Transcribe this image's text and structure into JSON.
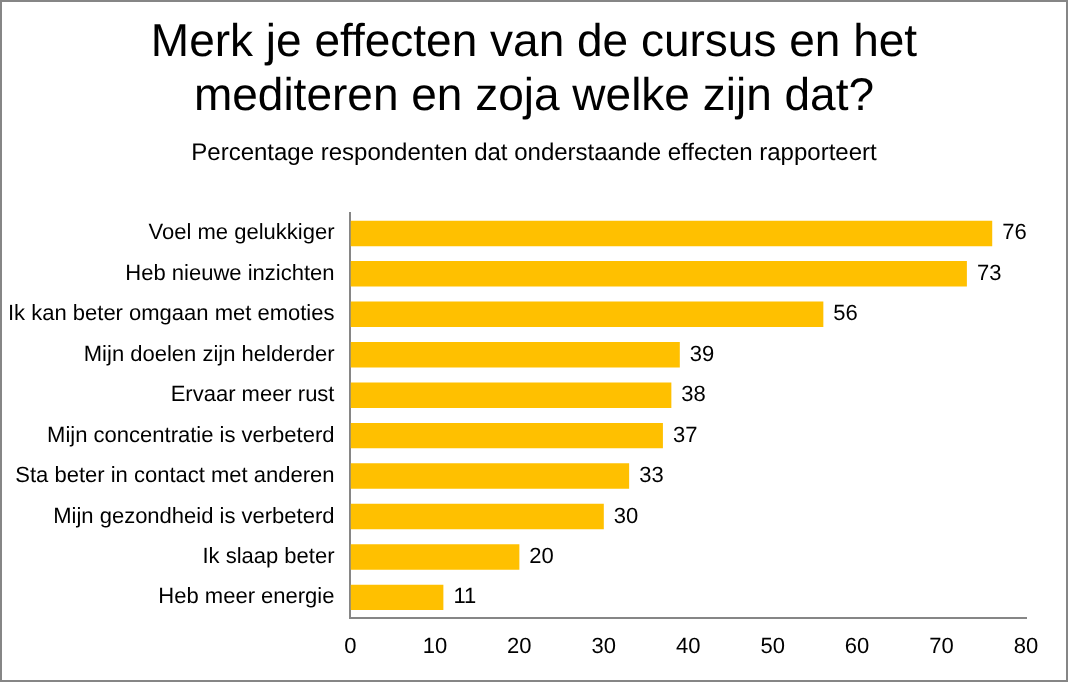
{
  "chart_data": {
    "type": "bar",
    "orientation": "horizontal",
    "title": "Merk je effecten van de cursus en het mediteren en zoja welke zijn dat?",
    "subtitle": "Percentage respondenten dat onderstaande  effecten rapporteert",
    "categories": [
      "Voel me gelukkiger",
      "Heb nieuwe inzichten",
      "Ik kan beter omgaan met emoties",
      "Mijn doelen zijn helderder",
      "Ervaar meer rust",
      "Mijn concentratie is verbeterd",
      "Sta beter in contact met anderen",
      "Mijn gezondheid is verbeterd",
      "Ik slaap beter",
      "Heb meer energie"
    ],
    "values": [
      76,
      73,
      56,
      39,
      38,
      37,
      33,
      30,
      20,
      11
    ],
    "color": "#ffc000",
    "xlim": [
      0,
      80
    ],
    "xticks": [
      0,
      10,
      20,
      30,
      40,
      50,
      60,
      70,
      80
    ],
    "data_labels": true,
    "grid": false,
    "legend": false
  }
}
